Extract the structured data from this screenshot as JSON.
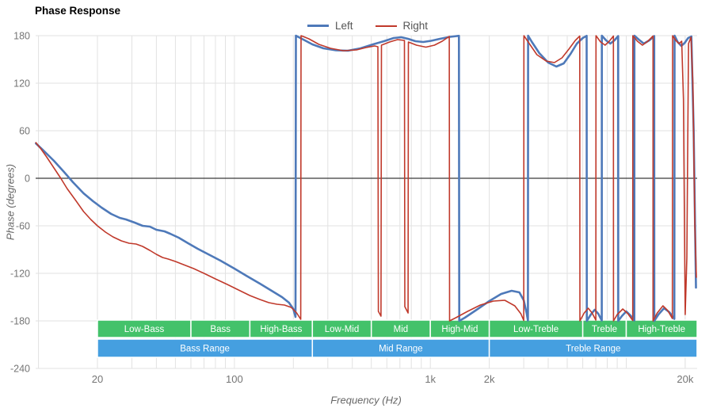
{
  "chart_data": {
    "type": "line",
    "title": "Phase Response",
    "xlabel": "Frequency (Hz)",
    "ylabel": "Phase (degrees)",
    "x_scale": "log",
    "x_range": [
      9.7,
      23000
    ],
    "y_range": [
      -240,
      180
    ],
    "y_ticks": [
      180,
      120,
      60,
      0,
      -60,
      -120,
      -180,
      -240
    ],
    "x_ticks": [
      {
        "f": 20,
        "label": "20"
      },
      {
        "f": 100,
        "label": "100"
      },
      {
        "f": 1000,
        "label": "1k"
      },
      {
        "f": 2000,
        "label": "2k"
      },
      {
        "f": 20000,
        "label": "20k"
      }
    ],
    "grid": "on",
    "legend_position": "top-center",
    "colors": {
      "grid": "#e2e2e2",
      "zero_line": "#3a3a3a",
      "tick_text": "#757575",
      "band_green": "#43c26a",
      "band_blue": "#459fe0",
      "band_text": "#ffffff"
    },
    "bands": {
      "green": [
        {
          "label": "Low-Bass",
          "f1": 20,
          "f2": 60
        },
        {
          "label": "Bass",
          "f1": 60,
          "f2": 120
        },
        {
          "label": "High-Bass",
          "f1": 120,
          "f2": 250
        },
        {
          "label": "Low-Mid",
          "f1": 250,
          "f2": 500
        },
        {
          "label": "Mid",
          "f1": 500,
          "f2": 1000
        },
        {
          "label": "High-Mid",
          "f1": 1000,
          "f2": 2000
        },
        {
          "label": "Low-Treble",
          "f1": 2000,
          "f2": 6000
        },
        {
          "label": "Treble",
          "f1": 6000,
          "f2": 10000
        },
        {
          "label": "High-Treble",
          "f1": 10000,
          "f2": 23000
        }
      ],
      "blue": [
        {
          "label": "Bass Range",
          "f1": 20,
          "f2": 250
        },
        {
          "label": "Mid Range",
          "f1": 250,
          "f2": 2000
        },
        {
          "label": "Treble Range",
          "f1": 2000,
          "f2": 23000
        }
      ]
    },
    "series": [
      {
        "name": "Left",
        "color": "#4e79b9",
        "width": 2.6,
        "points": [
          [
            9.7,
            44
          ],
          [
            10.5,
            36
          ],
          [
            12,
            22
          ],
          [
            13.5,
            8
          ],
          [
            15,
            -5
          ],
          [
            17,
            -19
          ],
          [
            19,
            -29
          ],
          [
            21,
            -37
          ],
          [
            23.5,
            -45
          ],
          [
            26,
            -50
          ],
          [
            28,
            -52
          ],
          [
            31,
            -56
          ],
          [
            34,
            -60
          ],
          [
            37,
            -61
          ],
          [
            40,
            -65
          ],
          [
            44,
            -67
          ],
          [
            47,
            -70
          ],
          [
            52,
            -75
          ],
          [
            58,
            -82
          ],
          [
            65,
            -89
          ],
          [
            75,
            -97
          ],
          [
            85,
            -104
          ],
          [
            100,
            -114
          ],
          [
            115,
            -123
          ],
          [
            135,
            -133
          ],
          [
            155,
            -142
          ],
          [
            175,
            -150
          ],
          [
            190,
            -157
          ],
          [
            200,
            -165
          ],
          [
            205,
            -175
          ],
          [
            206,
            180
          ],
          [
            225,
            175
          ],
          [
            250,
            169
          ],
          [
            285,
            164
          ],
          [
            330,
            161.5
          ],
          [
            380,
            161
          ],
          [
            440,
            164
          ],
          [
            510,
            169
          ],
          [
            580,
            173
          ],
          [
            650,
            177
          ],
          [
            710,
            178
          ],
          [
            770,
            176
          ],
          [
            840,
            173
          ],
          [
            920,
            172
          ],
          [
            1010,
            173.5
          ],
          [
            1120,
            176
          ],
          [
            1260,
            178.5
          ],
          [
            1400,
            179.8
          ],
          [
            1405,
            -180
          ],
          [
            1500,
            -176
          ],
          [
            1700,
            -167
          ],
          [
            2000,
            -155
          ],
          [
            2300,
            -146
          ],
          [
            2600,
            -142
          ],
          [
            2850,
            -144
          ],
          [
            3000,
            -154
          ],
          [
            3100,
            -170
          ],
          [
            3150,
            -179.5
          ],
          [
            3155,
            180
          ],
          [
            3300,
            172
          ],
          [
            3600,
            158
          ],
          [
            4000,
            146
          ],
          [
            4400,
            141
          ],
          [
            4800,
            145
          ],
          [
            5200,
            157
          ],
          [
            5600,
            170
          ],
          [
            6000,
            177
          ],
          [
            6280,
            179.8
          ],
          [
            6290,
            -180
          ],
          [
            6600,
            -172
          ],
          [
            6900,
            -166
          ],
          [
            7200,
            -171
          ],
          [
            7500,
            -179.5
          ],
          [
            7510,
            180
          ],
          [
            7900,
            174
          ],
          [
            8300,
            170
          ],
          [
            8700,
            174
          ],
          [
            9100,
            179.5
          ],
          [
            9110,
            -180
          ],
          [
            9500,
            -174
          ],
          [
            10000,
            -168
          ],
          [
            10500,
            -173
          ],
          [
            11000,
            -179.5
          ],
          [
            11010,
            180
          ],
          [
            11600,
            175
          ],
          [
            12300,
            170
          ],
          [
            13100,
            174
          ],
          [
            13900,
            179.5
          ],
          [
            13910,
            -180
          ],
          [
            14600,
            -172
          ],
          [
            15600,
            -164
          ],
          [
            16600,
            -169
          ],
          [
            17600,
            -177.5
          ],
          [
            17650,
            180
          ],
          [
            18300,
            172
          ],
          [
            19100,
            167
          ],
          [
            19900,
            171
          ],
          [
            20700,
            177
          ],
          [
            21500,
            179
          ],
          [
            22100,
            60
          ],
          [
            22700,
            -138
          ]
        ]
      },
      {
        "name": "Right",
        "color": "#c0392b",
        "width": 1.6,
        "points": [
          [
            9.7,
            45
          ],
          [
            10.3,
            37
          ],
          [
            11,
            27
          ],
          [
            12,
            13
          ],
          [
            13,
            0
          ],
          [
            14,
            -13
          ],
          [
            15.5,
            -28
          ],
          [
            17,
            -42
          ],
          [
            18.5,
            -52
          ],
          [
            20,
            -60
          ],
          [
            22,
            -68
          ],
          [
            24,
            -74
          ],
          [
            26.5,
            -79
          ],
          [
            29,
            -82
          ],
          [
            31.5,
            -83
          ],
          [
            34,
            -86
          ],
          [
            37,
            -91
          ],
          [
            40,
            -96
          ],
          [
            43,
            -100
          ],
          [
            46,
            -102
          ],
          [
            50,
            -105
          ],
          [
            55,
            -109
          ],
          [
            62,
            -114
          ],
          [
            70,
            -120
          ],
          [
            80,
            -127
          ],
          [
            92,
            -134
          ],
          [
            105,
            -141
          ],
          [
            120,
            -148
          ],
          [
            135,
            -153
          ],
          [
            150,
            -157
          ],
          [
            165,
            -159
          ],
          [
            180,
            -160
          ],
          [
            195,
            -163
          ],
          [
            208,
            -170
          ],
          [
            218,
            -178
          ],
          [
            219,
            180
          ],
          [
            240,
            176
          ],
          [
            270,
            169
          ],
          [
            310,
            164
          ],
          [
            360,
            161
          ],
          [
            420,
            162
          ],
          [
            470,
            165
          ],
          [
            520,
            167
          ],
          [
            540,
            166
          ],
          [
            543,
            -168
          ],
          [
            560,
            -174
          ],
          [
            563,
            168
          ],
          [
            620,
            172
          ],
          [
            680,
            175
          ],
          [
            738,
            174
          ],
          [
            741,
            -162
          ],
          [
            770,
            -170
          ],
          [
            773,
            172
          ],
          [
            850,
            168
          ],
          [
            950,
            165.5
          ],
          [
            1050,
            168
          ],
          [
            1150,
            173
          ],
          [
            1250,
            179
          ],
          [
            1255,
            -180
          ],
          [
            1350,
            -176
          ],
          [
            1550,
            -168
          ],
          [
            1800,
            -160
          ],
          [
            2100,
            -155
          ],
          [
            2400,
            -154
          ],
          [
            2700,
            -161
          ],
          [
            2900,
            -171
          ],
          [
            3000,
            -179.5
          ],
          [
            3005,
            180
          ],
          [
            3200,
            170
          ],
          [
            3500,
            156
          ],
          [
            3900,
            148
          ],
          [
            4300,
            146
          ],
          [
            4700,
            152
          ],
          [
            5100,
            163
          ],
          [
            5500,
            174
          ],
          [
            5790,
            179.5
          ],
          [
            5800,
            -180
          ],
          [
            6100,
            -170
          ],
          [
            6400,
            -164
          ],
          [
            6700,
            -170
          ],
          [
            7000,
            -179
          ],
          [
            7010,
            180
          ],
          [
            7400,
            172
          ],
          [
            7800,
            168
          ],
          [
            8200,
            173
          ],
          [
            8600,
            179.5
          ],
          [
            8610,
            -180
          ],
          [
            9000,
            -172
          ],
          [
            9600,
            -165
          ],
          [
            10200,
            -171
          ],
          [
            10800,
            -179.5
          ],
          [
            10810,
            180
          ],
          [
            11400,
            173
          ],
          [
            12100,
            168
          ],
          [
            12900,
            173
          ],
          [
            13700,
            179.5
          ],
          [
            13710,
            -180
          ],
          [
            14400,
            -170
          ],
          [
            15400,
            -161
          ],
          [
            16300,
            -167
          ],
          [
            17200,
            -177
          ],
          [
            17250,
            180
          ],
          [
            17900,
            174
          ],
          [
            18600,
            170
          ],
          [
            19200,
            173
          ],
          [
            19600,
            100
          ],
          [
            20000,
            -172
          ],
          [
            20400,
            -100
          ],
          [
            20800,
            170
          ],
          [
            21400,
            178
          ],
          [
            21900,
            120
          ],
          [
            22400,
            -60
          ],
          [
            22800,
            -125
          ]
        ]
      }
    ]
  }
}
